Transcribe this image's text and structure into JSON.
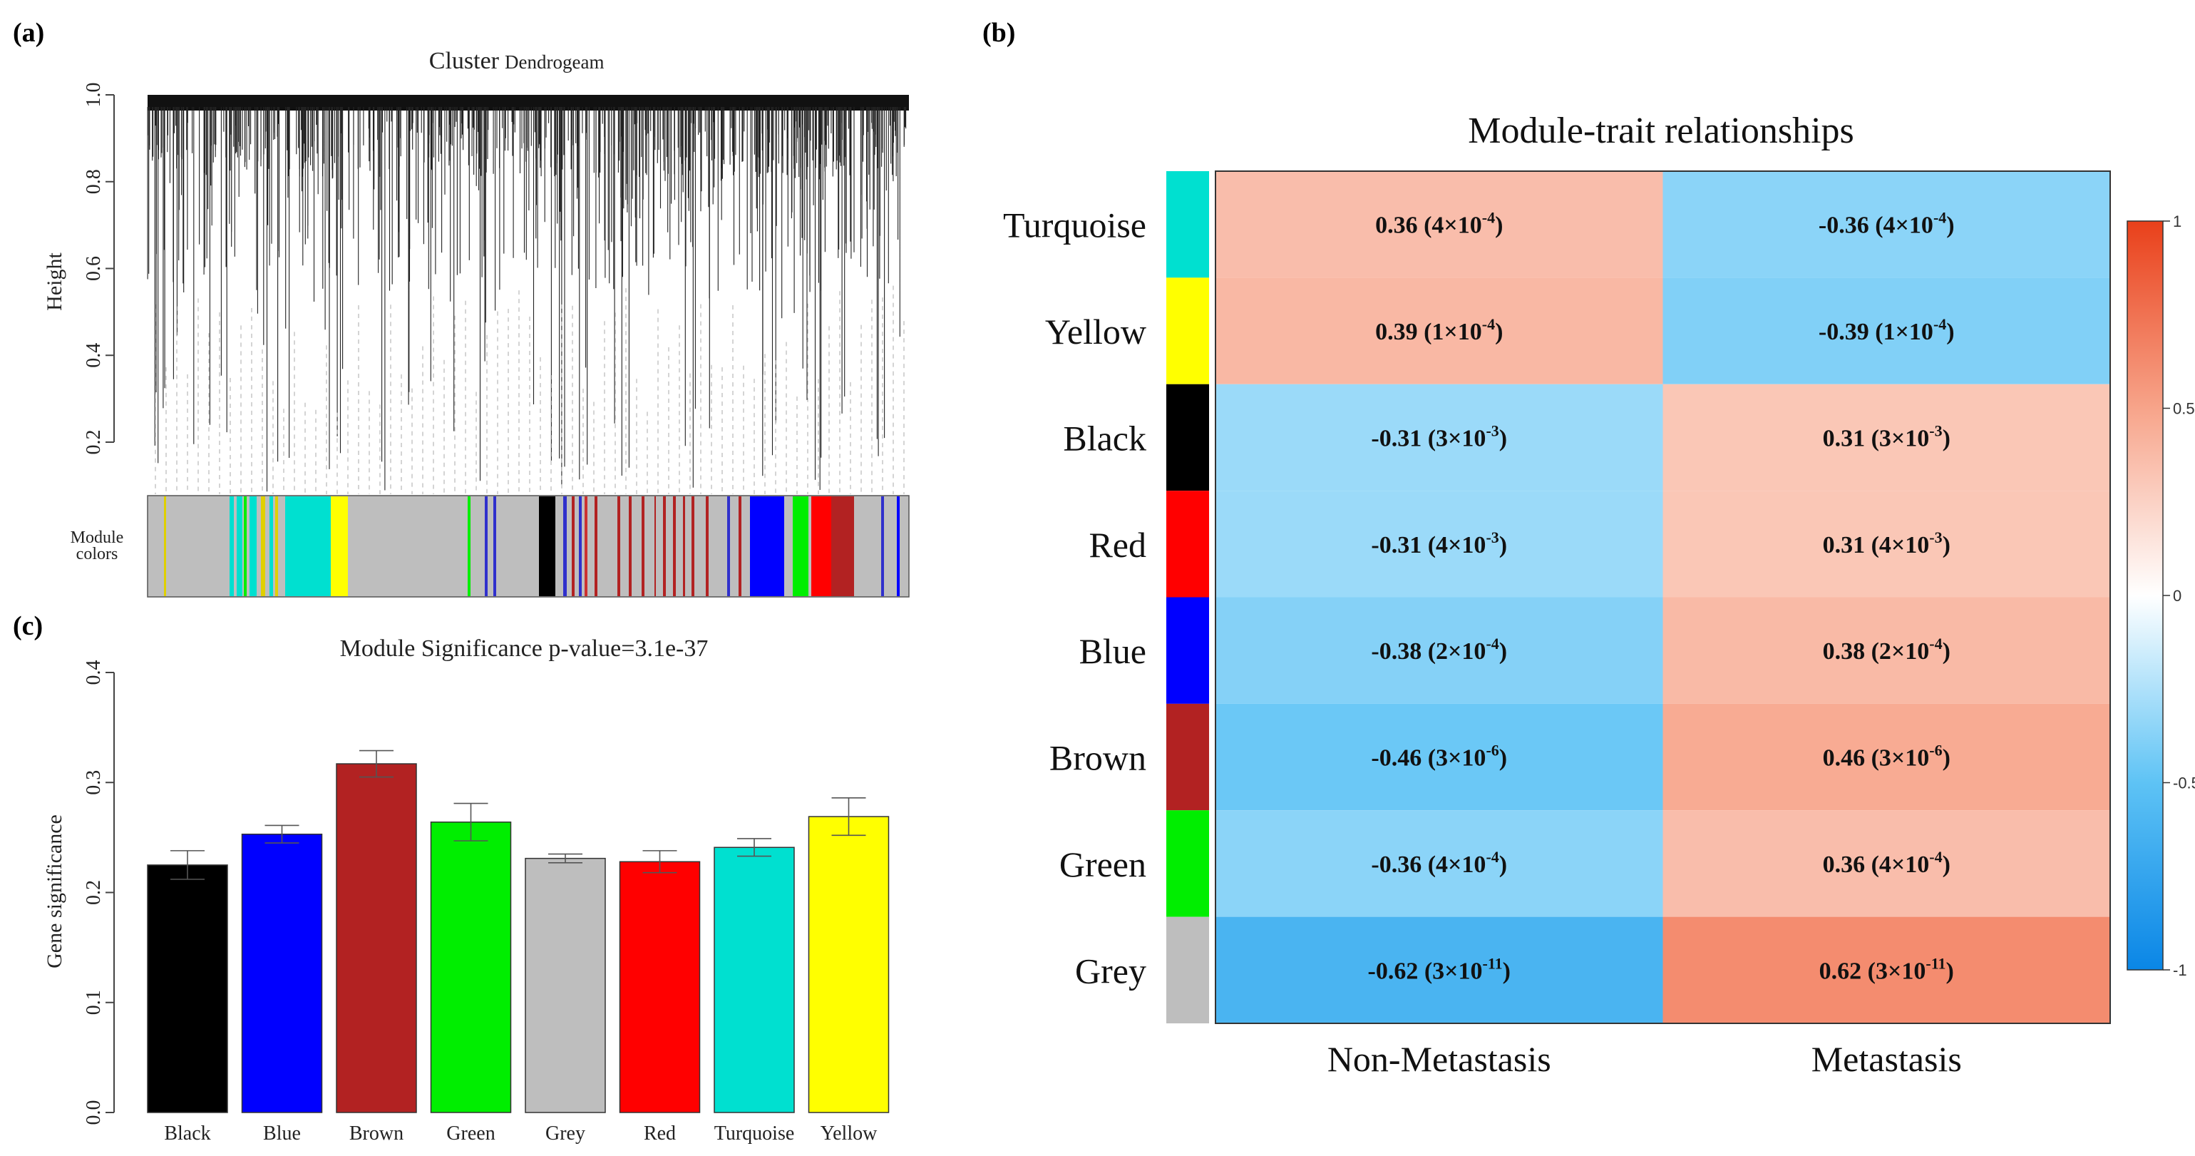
{
  "panels": {
    "a_label": "(a)",
    "b_label": "(b)",
    "c_label": "(c)"
  },
  "dendrogram": {
    "title_main": "Cluster",
    "title_sub": "Dendrogeam",
    "ylabel": "Height",
    "yticks": [
      "0.2",
      "0.4",
      "0.6",
      "0.8",
      "1.0"
    ],
    "module_label_line1": "Module",
    "module_label_line2": "colors"
  },
  "chart_data": [
    {
      "type": "bar",
      "title": "Module Significance p-value=3.1e-37",
      "xlabel": "",
      "ylabel": "Gene significance",
      "ylim": [
        0,
        0.4
      ],
      "yticks": [
        "0.0",
        "0.1",
        "0.2",
        "0.3",
        "0.4"
      ],
      "categories": [
        "Black",
        "Blue",
        "Brown",
        "Green",
        "Grey",
        "Red",
        "Turquoise",
        "Yellow"
      ],
      "values": [
        0.225,
        0.253,
        0.317,
        0.264,
        0.231,
        0.228,
        0.241,
        0.269
      ],
      "errors": [
        0.013,
        0.008,
        0.012,
        0.017,
        0.004,
        0.01,
        0.008,
        0.017
      ],
      "colors": [
        "#000000",
        "#0000ff",
        "#b22222",
        "#00ee00",
        "#bebebe",
        "#ff0000",
        "#00e0d0",
        "#ffff00"
      ]
    },
    {
      "type": "heatmap",
      "title": "Module-trait relationships",
      "rows": [
        "Turquoise",
        "Yellow",
        "Black",
        "Red",
        "Blue",
        "Brown",
        "Green",
        "Grey"
      ],
      "row_colors": [
        "#00e0d0",
        "#ffff00",
        "#000000",
        "#ff0000",
        "#0000ff",
        "#b22222",
        "#00ee00",
        "#bebebe"
      ],
      "columns": [
        "Non-Metastasis",
        "Metastasis"
      ],
      "values": [
        [
          0.36,
          -0.36
        ],
        [
          0.39,
          -0.39
        ],
        [
          -0.31,
          0.31
        ],
        [
          -0.31,
          0.31
        ],
        [
          -0.38,
          0.38
        ],
        [
          -0.46,
          0.46
        ],
        [
          -0.36,
          0.36
        ],
        [
          -0.62,
          0.62
        ]
      ],
      "labels": [
        [
          "0.36 (4×10",
          "-4",
          ")",
          "-0.36 (4×10",
          "-4",
          ")"
        ],
        [
          "0.39 (1×10",
          "-4",
          ")",
          "-0.39 (1×10",
          "-4",
          ")"
        ],
        [
          "-0.31 (3×10",
          "-3",
          ")",
          "0.31 (3×10",
          "-3",
          ")"
        ],
        [
          "-0.31 (4×10",
          "-3",
          ")",
          "0.31 (4×10",
          "-3",
          ")"
        ],
        [
          "-0.38 (2×10",
          "-4",
          ")",
          "0.38 (2×10",
          "-4",
          ")"
        ],
        [
          "-0.46 (3×10",
          "-6",
          ")",
          "0.46 (3×10",
          "-6",
          ")"
        ],
        [
          "-0.36 (4×10",
          "-4",
          ")",
          "0.36 (4×10",
          "-4",
          ")"
        ],
        [
          "-0.62 (3×10",
          "-11",
          ")",
          "0.62 (3×10",
          "-11",
          ")"
        ]
      ],
      "colorbar_ticks": [
        "1",
        "0.5",
        "0",
        "-0.5",
        "-1"
      ],
      "colorbar_range": [
        -1,
        1
      ]
    }
  ]
}
